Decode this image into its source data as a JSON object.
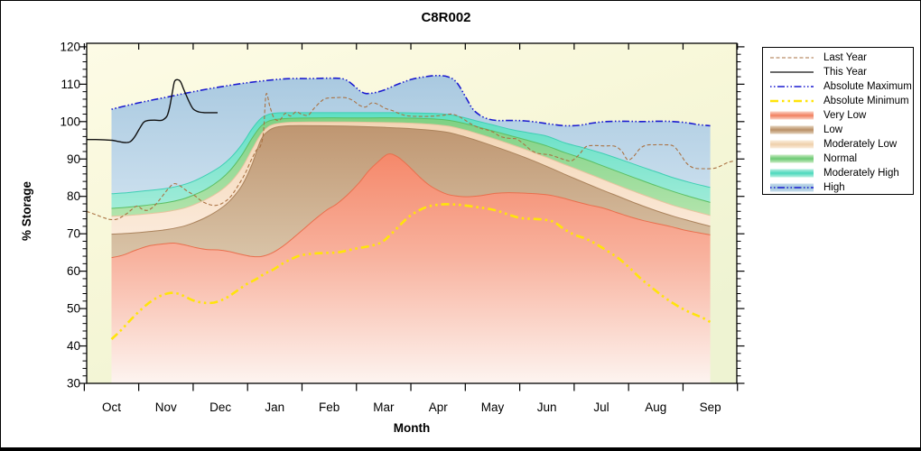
{
  "title": "C8R002",
  "axes": {
    "y_title": "% Storage",
    "x_title": "Month",
    "y_min": 30,
    "y_max": 120,
    "y_major_step": 10,
    "y_minor_step": 2,
    "months": [
      "Oct",
      "Nov",
      "Dec",
      "Jan",
      "Feb",
      "Mar",
      "Apr",
      "May",
      "Jun",
      "Jul",
      "Aug",
      "Sep"
    ]
  },
  "colors": {
    "plot_bg_top": "#fdfbe6",
    "plot_bg_mid": "#f7f7d8",
    "plot_bg_bottom": "#eef3d2",
    "frame": "#000000",
    "last_year_line": "#aa7243",
    "this_year_line": "#111111",
    "abs_max_line": "#1b1bd0",
    "abs_min_line": "#ffe40a",
    "band_high_top": "#a9c9e0",
    "band_high_bottom": "#c9deed",
    "band_high_edge": "#1b1bd0",
    "band_modhigh_top": "#5fdfc4",
    "band_modhigh_bottom": "#a2ecd9",
    "band_modhigh_edge": "#3ecfb4",
    "band_normal_top": "#7ed183",
    "band_normal_bottom": "#b2e4ac",
    "band_normal_edge": "#5abf63",
    "band_modlow_top": "#f3d5b4",
    "band_modlow_bottom": "#fbeada",
    "band_modlow_edge": "#e6c49e",
    "band_low_top": "#bf9671",
    "band_low_bottom": "#d9c4a8",
    "band_low_edge": "#ab835c",
    "band_verylow_top": "#f5886a",
    "band_verylow_mid": "#f8b29e",
    "band_verylow_bottom": "#fdf4f0",
    "band_verylow_edge": "#e96f4d"
  },
  "legend": {
    "items": [
      {
        "label": "Last Year",
        "kind": "line",
        "color": "#aa7243",
        "dash": "4 2.5",
        "width": 1.1
      },
      {
        "label": "This Year",
        "kind": "line",
        "color": "#111111",
        "dash": "",
        "width": 1.3
      },
      {
        "label": "Absolute Maximum",
        "kind": "line",
        "color": "#1b1bd0",
        "dash": "1.5 2.5 1.5 2.5 8 2.5",
        "width": 1.6
      },
      {
        "label": "Absolute Minimum",
        "kind": "line",
        "color": "#ffe40a",
        "dash": "9 4 2.5 4 2.5 4",
        "width": 2.6
      },
      {
        "label": "Very Low",
        "kind": "band",
        "light": "#fcd5c8",
        "strong": "#f1805f"
      },
      {
        "label": "Low",
        "kind": "band",
        "light": "#e3d2bb",
        "strong": "#b98f66"
      },
      {
        "label": "Moderately Low",
        "kind": "band",
        "light": "#fbeedd",
        "strong": "#efd0ab"
      },
      {
        "label": "Normal",
        "kind": "band",
        "light": "#c8ebc2",
        "strong": "#6cc973"
      },
      {
        "label": "Moderately High",
        "kind": "band",
        "light": "#b5f0e0",
        "strong": "#4cd8bd"
      },
      {
        "label": "High",
        "kind": "band",
        "light": "#c6dcec",
        "strong": "#9fc4dc",
        "line": "#1b1bd0",
        "line_dash": "1.5 2.5 1.5 2.5 8 2.5"
      }
    ]
  },
  "chart_data": {
    "type": "area",
    "title": "C8R002",
    "xlabel": "Month",
    "ylabel": "% Storage",
    "ylim": [
      30,
      120
    ],
    "x_scale_note": "x in month units: 0 = Oct center, 11 = Sep center; categories span Oct-Sep",
    "categories": [
      "Oct",
      "Nov",
      "Dec",
      "Jan",
      "Feb",
      "Mar",
      "Apr",
      "May",
      "Jun",
      "Jul",
      "Aug",
      "Sep"
    ],
    "series": [
      {
        "name": "This Year",
        "style": "solid",
        "x": [
          -0.46,
          -0.29,
          -0.12,
          0.01,
          0.12,
          0.24,
          0.34,
          0.42,
          0.51,
          0.59,
          0.67,
          0.79,
          0.89,
          0.95,
          1.02,
          1.07,
          1.12,
          1.16,
          1.22,
          1.27,
          1.33,
          1.42,
          1.5,
          1.6,
          1.72,
          1.83,
          1.95
        ],
        "y": [
          95.2,
          95.2,
          95.1,
          95.0,
          94.7,
          94.4,
          94.6,
          95.8,
          98.0,
          99.8,
          100.3,
          100.4,
          100.3,
          100.5,
          101.5,
          104.0,
          108.0,
          110.8,
          111.2,
          110.6,
          108.5,
          105.5,
          103.4,
          102.6,
          102.4,
          102.4,
          102.4
        ]
      },
      {
        "name": "Last Year",
        "style": "dashed",
        "x": [
          -0.46,
          -0.29,
          -0.12,
          -0.01,
          0.12,
          0.29,
          0.46,
          0.57,
          0.67,
          0.79,
          0.92,
          1.04,
          1.15,
          1.27,
          1.38,
          1.52,
          1.65,
          1.78,
          1.92,
          2.05,
          2.18,
          2.31,
          2.45,
          2.56,
          2.66,
          2.73,
          2.79,
          2.84,
          2.91,
          2.99,
          3.09,
          3.19,
          3.29,
          3.39,
          3.49,
          3.61,
          3.72,
          3.84,
          3.94,
          4.1,
          4.3,
          4.44,
          4.55,
          4.67,
          4.78,
          4.9,
          5.02,
          5.15,
          5.28,
          5.41,
          5.6,
          5.85,
          6.09,
          6.26,
          6.43,
          6.59,
          6.76,
          6.89,
          7.01,
          7.12,
          7.22,
          7.34,
          7.45,
          7.59,
          7.72,
          7.84,
          7.95,
          8.08,
          8.22,
          8.35,
          8.45,
          8.58,
          8.71,
          8.83,
          9.05,
          9.25,
          9.38,
          9.48,
          9.58,
          9.71,
          9.83,
          9.99,
          10.16,
          10.32,
          10.44,
          10.57,
          10.7,
          10.87,
          11.07,
          11.2,
          11.33,
          11.45
        ],
        "y": [
          76.0,
          75.1,
          74.2,
          73.8,
          74.0,
          75.5,
          77.4,
          76.5,
          76.3,
          77.5,
          79.8,
          82.0,
          83.4,
          82.7,
          81.5,
          80.3,
          78.8,
          77.9,
          77.6,
          78.3,
          79.8,
          82.5,
          86.0,
          89.5,
          92.3,
          93.3,
          97.0,
          107.3,
          104.0,
          100.9,
          100.4,
          102.2,
          101.5,
          102.6,
          102.0,
          101.7,
          103.5,
          105.3,
          106.2,
          106.4,
          106.4,
          105.6,
          104.4,
          103.9,
          105.0,
          104.6,
          103.6,
          103.0,
          102.2,
          101.6,
          101.4,
          101.4,
          101.7,
          102.0,
          101.0,
          99.5,
          98.3,
          97.8,
          97.2,
          96.2,
          95.7,
          95.5,
          95.3,
          93.8,
          92.2,
          91.5,
          91.3,
          91.0,
          90.3,
          89.7,
          89.5,
          91.0,
          93.2,
          93.6,
          93.5,
          93.4,
          92.0,
          89.8,
          90.5,
          92.8,
          93.7,
          93.8,
          93.8,
          93.5,
          91.5,
          88.8,
          87.6,
          87.4,
          87.5,
          88.2,
          89.1,
          89.5
        ]
      },
      {
        "name": "Absolute Maximum",
        "style": "dash-dot",
        "x": [
          0,
          0.49,
          1.0,
          1.5,
          2.0,
          2.5,
          2.99,
          3.32,
          3.66,
          4.0,
          4.3,
          4.6,
          4.77,
          5.0,
          5.26,
          5.51,
          5.76,
          5.96,
          6.18,
          6.34,
          6.51,
          6.63,
          6.76,
          6.92,
          7.09,
          7.34,
          7.59,
          7.84,
          8.08,
          8.33,
          8.58,
          8.83,
          9.08,
          9.41,
          9.74,
          10.07,
          10.32,
          10.57,
          10.77,
          11.0
        ],
        "y": [
          103.3,
          105.0,
          106.5,
          108.0,
          109.3,
          110.4,
          111.2,
          111.5,
          111.5,
          111.6,
          111.2,
          107.9,
          107.6,
          108.4,
          110.0,
          111.3,
          112.0,
          112.3,
          112.0,
          110.5,
          106.5,
          103.5,
          101.8,
          100.7,
          100.3,
          100.3,
          100.2,
          99.8,
          99.3,
          98.9,
          99.0,
          99.6,
          100.0,
          100.1,
          100.0,
          100.1,
          100.0,
          99.7,
          99.2,
          98.9
        ]
      },
      {
        "name": "Absolute Minimum",
        "style": "dash-dot",
        "x": [
          0,
          0.16,
          0.32,
          0.49,
          0.66,
          0.82,
          0.95,
          1.09,
          1.22,
          1.35,
          1.48,
          1.62,
          1.75,
          1.88,
          2.01,
          2.15,
          2.31,
          2.48,
          2.65,
          2.81,
          2.98,
          3.14,
          3.31,
          3.47,
          3.64,
          3.81,
          3.97,
          4.14,
          4.3,
          4.47,
          4.63,
          4.8,
          4.97,
          5.13,
          5.3,
          5.46,
          5.63,
          5.8,
          5.96,
          6.13,
          6.33,
          6.53,
          6.72,
          6.92,
          7.12,
          7.32,
          7.52,
          7.72,
          7.92,
          8.12,
          8.32,
          8.51,
          8.71,
          8.91,
          9.11,
          9.31,
          9.51,
          9.71,
          9.91,
          10.11,
          10.31,
          10.51,
          10.7,
          10.85,
          11.0
        ],
        "y": [
          41.8,
          44.0,
          46.5,
          49.0,
          51.2,
          52.8,
          53.7,
          54.2,
          54.0,
          53.2,
          52.3,
          51.7,
          51.5,
          51.6,
          52.2,
          53.2,
          54.8,
          56.5,
          57.8,
          59.3,
          60.5,
          62.0,
          63.3,
          64.2,
          64.6,
          64.8,
          64.9,
          65.0,
          65.4,
          66.0,
          66.4,
          66.9,
          67.8,
          69.8,
          72.3,
          74.5,
          76.1,
          77.2,
          77.7,
          77.9,
          77.8,
          77.5,
          77.1,
          76.7,
          76.0,
          75.0,
          74.2,
          74.0,
          73.8,
          73.2,
          71.2,
          69.7,
          68.7,
          67.2,
          65.4,
          63.5,
          61.0,
          58.2,
          55.8,
          53.5,
          51.5,
          49.8,
          48.5,
          47.6,
          46.4
        ]
      }
    ],
    "band_note": "High band spans Absolute Maximum down to high_lower; Moderately High spans high_lower to mod_high_lower; Normal spans mod_high_lower to normal_lower; Moderately Low spans normal_lower to mod_low_lower; Low spans mod_low_lower to low_lower; Very Low spans low_lower down to plot bottom (fading fill).",
    "band_x": [
      0,
      0.29,
      0.62,
      1.0,
      1.29,
      1.5,
      1.75,
      2.0,
      2.2,
      2.4,
      2.58,
      2.74,
      2.88,
      3.03,
      3.28,
      3.77,
      4.27,
      4.77,
      5.27,
      5.6,
      5.93,
      6.18,
      6.43,
      6.68,
      7.01,
      7.34,
      7.67,
      8.0,
      8.33,
      8.67,
      9.0,
      9.33,
      9.66,
      10.0,
      10.32,
      10.66,
      11.0
    ],
    "band_boundaries": {
      "high_lower": [
        80.7,
        81.0,
        81.5,
        82.1,
        83.0,
        84.0,
        85.8,
        88.0,
        90.5,
        94.0,
        98.0,
        100.8,
        101.9,
        102.3,
        102.4,
        102.4,
        102.4,
        102.4,
        102.4,
        102.3,
        102.2,
        101.9,
        101.2,
        100.3,
        99.1,
        97.9,
        97.0,
        96.1,
        94.3,
        93.0,
        91.6,
        90.0,
        88.3,
        86.6,
        85.0,
        83.6,
        82.4
      ],
      "mod_high_lower": [
        76.8,
        77.1,
        77.6,
        78.3,
        79.2,
        80.3,
        82.0,
        84.5,
        87.3,
        91.2,
        95.5,
        98.7,
        100.1,
        100.6,
        100.9,
        101.0,
        101.0,
        101.0,
        101.0,
        100.9,
        100.7,
        100.4,
        99.7,
        98.8,
        97.5,
        96.2,
        94.9,
        93.5,
        91.7,
        90.1,
        88.3,
        86.5,
        84.7,
        82.9,
        81.3,
        79.8,
        78.4
      ],
      "normal_lower": [
        74.7,
        74.9,
        75.3,
        75.9,
        76.7,
        77.7,
        79.3,
        81.5,
        84.0,
        87.8,
        92.5,
        96.5,
        98.6,
        99.4,
        99.8,
        99.9,
        99.9,
        99.8,
        99.7,
        99.5,
        99.2,
        98.8,
        98.0,
        97.0,
        95.5,
        93.9,
        92.2,
        90.4,
        88.5,
        86.6,
        84.7,
        82.8,
        81.0,
        79.2,
        77.6,
        76.2,
        74.9
      ],
      "mod_low_lower": [
        69.9,
        70.1,
        70.5,
        71.1,
        71.9,
        72.9,
        74.5,
        76.7,
        79.2,
        83.0,
        88.5,
        95.0,
        97.5,
        98.5,
        98.9,
        98.9,
        98.8,
        98.6,
        98.3,
        98.0,
        97.6,
        97.1,
        96.2,
        95.1,
        93.5,
        91.8,
        90.0,
        88.0,
        85.9,
        83.8,
        81.8,
        79.9,
        78.0,
        76.2,
        74.7,
        73.3,
        72.0
      ]
    },
    "low_lower_x": [
      0,
      0.21,
      0.46,
      0.7,
      0.95,
      1.15,
      1.35,
      1.55,
      1.75,
      1.95,
      2.15,
      2.35,
      2.55,
      2.74,
      2.94,
      3.14,
      3.34,
      3.54,
      3.74,
      3.94,
      4.14,
      4.34,
      4.54,
      4.73,
      4.9,
      5.08,
      5.23,
      5.36,
      5.5,
      5.66,
      5.83,
      6.0,
      6.16,
      6.33,
      6.54,
      6.79,
      7.04,
      7.29,
      7.54,
      7.79,
      8.03,
      8.28,
      8.53,
      8.78,
      9.03,
      9.28,
      9.53,
      9.78,
      10.03,
      10.28,
      10.52,
      10.77,
      11.0
    ],
    "low_lower_y": [
      63.6,
      64.3,
      65.7,
      66.8,
      67.3,
      67.5,
      67.0,
      66.3,
      65.8,
      65.7,
      65.3,
      64.6,
      64.0,
      63.9,
      64.8,
      66.6,
      68.9,
      71.4,
      73.9,
      76.2,
      78.0,
      80.5,
      83.5,
      86.9,
      89.3,
      91.3,
      90.8,
      89.4,
      87.5,
      85.2,
      83.1,
      81.6,
      80.6,
      80.1,
      79.9,
      80.2,
      80.8,
      81.0,
      80.9,
      80.7,
      80.4,
      79.6,
      78.6,
      77.7,
      76.9,
      75.7,
      74.5,
      73.5,
      72.7,
      71.9,
      71.0,
      70.3,
      69.7
    ]
  }
}
